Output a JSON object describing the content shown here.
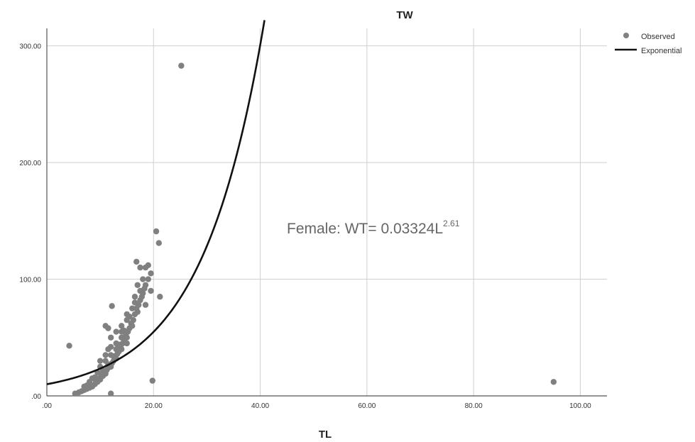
{
  "chart_data": {
    "type": "scatter",
    "title": "TW",
    "xlabel": "TL",
    "ylabel": "",
    "xlim": [
      0,
      105
    ],
    "ylim": [
      0,
      315
    ],
    "x_ticks": [
      0,
      20,
      40,
      60,
      80,
      100
    ],
    "x_tick_labels": [
      ".00",
      "20.00",
      "40.00",
      "60.00",
      "80.00",
      "100.00"
    ],
    "y_ticks": [
      0,
      100,
      200,
      300
    ],
    "y_tick_labels": [
      ".00",
      "100.00",
      "200.00",
      "300.00"
    ],
    "grid": true,
    "legend_position": "top-right",
    "legend": {
      "observed_label": "Observed",
      "fit_label": "Exponential"
    },
    "annotation": {
      "text": "Female: WT= 0.03324L",
      "superscript": "2.61"
    },
    "series": [
      {
        "name": "Observed",
        "kind": "points",
        "color": "#808080",
        "points": [
          [
            5.3,
            2
          ],
          [
            6,
            3
          ],
          [
            6.5,
            4
          ],
          [
            7,
            5
          ],
          [
            7.5,
            6
          ],
          [
            8,
            7
          ],
          [
            8.5,
            8
          ],
          [
            9,
            10
          ],
          [
            9.2,
            13
          ],
          [
            9.5,
            12
          ],
          [
            9.8,
            15
          ],
          [
            10,
            14
          ],
          [
            10.2,
            18
          ],
          [
            10.5,
            17
          ],
          [
            10.8,
            20
          ],
          [
            11,
            19
          ],
          [
            11.2,
            22
          ],
          [
            11.5,
            24
          ],
          [
            11.8,
            26
          ],
          [
            12,
            25
          ],
          [
            12.2,
            28
          ],
          [
            12.5,
            30
          ],
          [
            12.8,
            33
          ],
          [
            13,
            32
          ],
          [
            13.2,
            36
          ],
          [
            13.5,
            38
          ],
          [
            13.8,
            42
          ],
          [
            14,
            40
          ],
          [
            14.2,
            45
          ],
          [
            14.5,
            48
          ],
          [
            14.8,
            52
          ],
          [
            15,
            50
          ],
          [
            15.2,
            55
          ],
          [
            15.5,
            58
          ],
          [
            15.8,
            62
          ],
          [
            16,
            60
          ],
          [
            16.2,
            65
          ],
          [
            16.5,
            70
          ],
          [
            16.8,
            75
          ],
          [
            17,
            72
          ],
          [
            17.2,
            78
          ],
          [
            17.5,
            82
          ],
          [
            17.8,
            85
          ],
          [
            18,
            88
          ],
          [
            18.3,
            92
          ],
          [
            18.5,
            95
          ],
          [
            19,
            100
          ],
          [
            19.5,
            105
          ],
          [
            17.5,
            90
          ],
          [
            16.5,
            85
          ],
          [
            14,
            55
          ],
          [
            13,
            45
          ],
          [
            12,
            35
          ],
          [
            11,
            30
          ],
          [
            10,
            25
          ],
          [
            15,
            65
          ],
          [
            16,
            75
          ],
          [
            17,
            95
          ],
          [
            18,
            100
          ],
          [
            17.5,
            110
          ],
          [
            18.5,
            110
          ],
          [
            19,
            112
          ],
          [
            16.8,
            115
          ],
          [
            19.5,
            90
          ],
          [
            18.5,
            78
          ],
          [
            11,
            60
          ],
          [
            11.5,
            58
          ],
          [
            12,
            50
          ],
          [
            12.2,
            77
          ],
          [
            13,
            55
          ],
          [
            14,
            60
          ],
          [
            15,
            70
          ],
          [
            9.5,
            20
          ],
          [
            10,
            30
          ],
          [
            11,
            35
          ],
          [
            11.5,
            40
          ],
          [
            12,
            42
          ],
          [
            13,
            40
          ],
          [
            14,
            50
          ],
          [
            15,
            45
          ],
          [
            8,
            12
          ],
          [
            8.5,
            15
          ],
          [
            9,
            16
          ],
          [
            7.5,
            9
          ],
          [
            7,
            8
          ],
          [
            10.5,
            22
          ],
          [
            11.5,
            27
          ],
          [
            12.5,
            34
          ],
          [
            13.5,
            44
          ],
          [
            14.5,
            56
          ],
          [
            15.5,
            68
          ],
          [
            16.5,
            80
          ],
          [
            4.2,
            43
          ],
          [
            12,
            2
          ],
          [
            20.5,
            141
          ],
          [
            21,
            131
          ],
          [
            21.2,
            85
          ],
          [
            19.8,
            13
          ],
          [
            25.2,
            283
          ],
          [
            95,
            12
          ]
        ]
      },
      {
        "name": "Exponential",
        "kind": "curve",
        "color": "#111111",
        "model": "y = a * exp(b * x)",
        "a": 10,
        "b": 0.0851,
        "x_range": [
          0,
          40.8
        ]
      }
    ]
  }
}
